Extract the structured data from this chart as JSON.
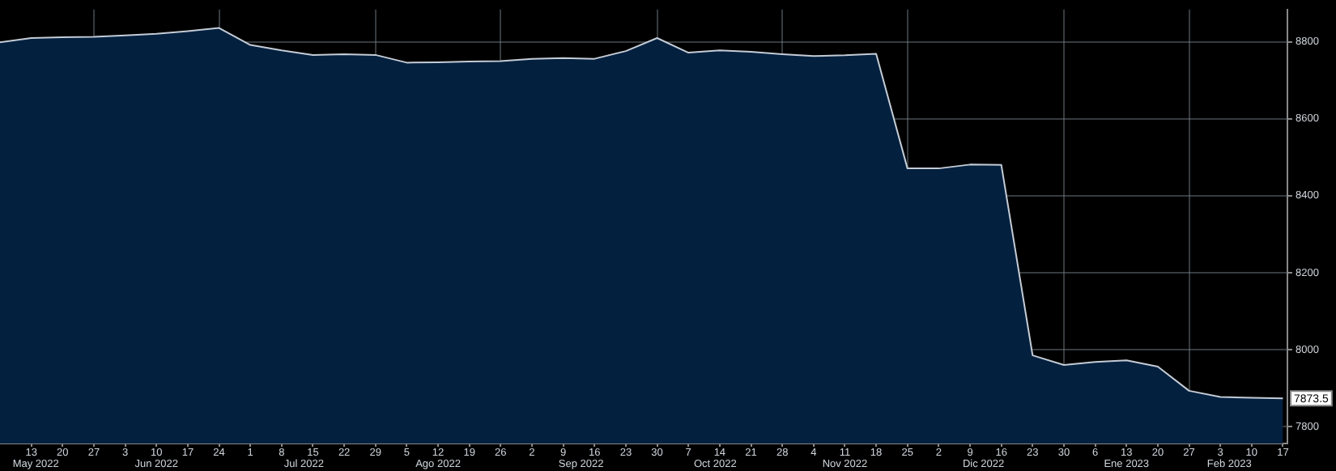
{
  "chart_data": {
    "type": "area",
    "x": [
      "2022-05-06",
      "2022-05-13",
      "2022-05-20",
      "2022-05-27",
      "2022-06-03",
      "2022-06-10",
      "2022-06-17",
      "2022-06-24",
      "2022-07-01",
      "2022-07-08",
      "2022-07-15",
      "2022-07-22",
      "2022-07-29",
      "2022-08-05",
      "2022-08-12",
      "2022-08-19",
      "2022-08-26",
      "2022-09-02",
      "2022-09-09",
      "2022-09-16",
      "2022-09-23",
      "2022-09-30",
      "2022-10-07",
      "2022-10-14",
      "2022-10-21",
      "2022-10-28",
      "2022-11-04",
      "2022-11-11",
      "2022-11-18",
      "2022-11-25",
      "2022-12-02",
      "2022-12-09",
      "2022-12-16",
      "2022-12-23",
      "2022-12-30",
      "2023-01-06",
      "2023-01-13",
      "2023-01-20",
      "2023-01-27",
      "2023-02-03",
      "2023-02-10",
      "2023-02-17"
    ],
    "series": [
      {
        "color": "#03203f",
        "values": [
          8799,
          8810,
          8812,
          8813,
          8817,
          8821,
          8828,
          8836,
          8792,
          8778,
          8766,
          8768,
          8766,
          8746,
          8747,
          8749,
          8750,
          8756,
          8758,
          8756,
          8776,
          8810,
          8772,
          8778,
          8774,
          8768,
          8763,
          8765,
          8769,
          8471,
          8471,
          8481,
          8480,
          7985,
          7960,
          7968,
          7972,
          7956,
          7893,
          7877,
          7875,
          7873.5
        ],
        "value_labels": [
          null,
          null,
          null,
          null,
          null,
          null,
          null,
          null,
          null,
          null,
          null,
          null,
          null,
          null,
          null,
          null,
          null,
          null,
          null,
          null,
          null,
          null,
          null,
          null,
          null,
          null,
          null,
          null,
          null,
          null,
          null,
          null,
          null,
          null,
          null,
          null,
          null,
          null,
          null,
          null,
          null,
          "7873.5"
        ]
      }
    ],
    "xlim": [
      "2022-05-06",
      "2023-02-18"
    ],
    "xticks": [
      {
        "value": "2022-05-13",
        "label": "13"
      },
      {
        "value": "2022-05-20",
        "label": "20"
      },
      {
        "value": "2022-05-27",
        "label": "27"
      },
      {
        "value": "2022-06-03",
        "label": "3"
      },
      {
        "value": "2022-06-10",
        "label": "10"
      },
      {
        "value": "2022-06-17",
        "label": "17"
      },
      {
        "value": "2022-06-24",
        "label": "24"
      },
      {
        "value": "2022-07-01",
        "label": "1"
      },
      {
        "value": "2022-07-08",
        "label": "8"
      },
      {
        "value": "2022-07-15",
        "label": "15"
      },
      {
        "value": "2022-07-22",
        "label": "22"
      },
      {
        "value": "2022-07-29",
        "label": "29"
      },
      {
        "value": "2022-08-05",
        "label": "5"
      },
      {
        "value": "2022-08-12",
        "label": "12"
      },
      {
        "value": "2022-08-19",
        "label": "19"
      },
      {
        "value": "2022-08-26",
        "label": "26"
      },
      {
        "value": "2022-09-02",
        "label": "2"
      },
      {
        "value": "2022-09-09",
        "label": "9"
      },
      {
        "value": "2022-09-16",
        "label": "16"
      },
      {
        "value": "2022-09-23",
        "label": "23"
      },
      {
        "value": "2022-09-30",
        "label": "30"
      },
      {
        "value": "2022-10-07",
        "label": "7"
      },
      {
        "value": "2022-10-14",
        "label": "14"
      },
      {
        "value": "2022-10-21",
        "label": "21"
      },
      {
        "value": "2022-10-28",
        "label": "28"
      },
      {
        "value": "2022-11-04",
        "label": "4"
      },
      {
        "value": "2022-11-11",
        "label": "11"
      },
      {
        "value": "2022-11-18",
        "label": "18"
      },
      {
        "value": "2022-11-25",
        "label": "25"
      },
      {
        "value": "2022-12-02",
        "label": "2"
      },
      {
        "value": "2022-12-09",
        "label": "9"
      },
      {
        "value": "2022-12-16",
        "label": "16"
      },
      {
        "value": "2022-12-23",
        "label": "23"
      },
      {
        "value": "2022-12-30",
        "label": "30"
      },
      {
        "value": "2023-01-06",
        "label": "6"
      },
      {
        "value": "2023-01-13",
        "label": "13"
      },
      {
        "value": "2023-01-20",
        "label": "20"
      },
      {
        "value": "2023-01-27",
        "label": "27"
      },
      {
        "value": "2023-02-03",
        "label": "3"
      },
      {
        "value": "2023-02-10",
        "label": "10"
      },
      {
        "value": "2023-02-17",
        "label": "17"
      }
    ],
    "x2lim": [
      "2022-05-06",
      "2023-02-18"
    ],
    "x2ticks": [
      {
        "value": "2022-05-14",
        "label": "May 2022"
      },
      {
        "value": "2022-05-27",
        "label": null
      },
      {
        "value": "2022-06-10",
        "label": "Jun 2022"
      },
      {
        "value": "2022-06-24",
        "label": null
      },
      {
        "value": "2022-07-13",
        "label": "Jul 2022"
      },
      {
        "value": "2022-07-29",
        "label": null
      },
      {
        "value": "2022-08-12",
        "label": "Ago 2022"
      },
      {
        "value": "2022-08-26",
        "label": null
      },
      {
        "value": "2022-09-13",
        "label": "Sep 2022"
      },
      {
        "value": "2022-09-30",
        "label": null
      },
      {
        "value": "2022-10-13",
        "label": "Oct 2022"
      },
      {
        "value": "2022-10-28",
        "label": null
      },
      {
        "value": "2022-11-11",
        "label": "Nov 2022"
      },
      {
        "value": "2022-11-25",
        "label": null
      },
      {
        "value": "2022-12-12",
        "label": "Dic 2022"
      },
      {
        "value": "2022-12-30",
        "label": null
      },
      {
        "value": "2023-01-13",
        "label": "Ene 2023"
      },
      {
        "value": "2023-01-27",
        "label": null
      },
      {
        "value": "2023-02-05",
        "label": "Feb 2023"
      }
    ],
    "ylim": [
      7756,
      8884
    ],
    "yticks": [
      7800,
      8000,
      8200,
      8400,
      8600,
      8800
    ],
    "grid": true,
    "legend": false
  }
}
